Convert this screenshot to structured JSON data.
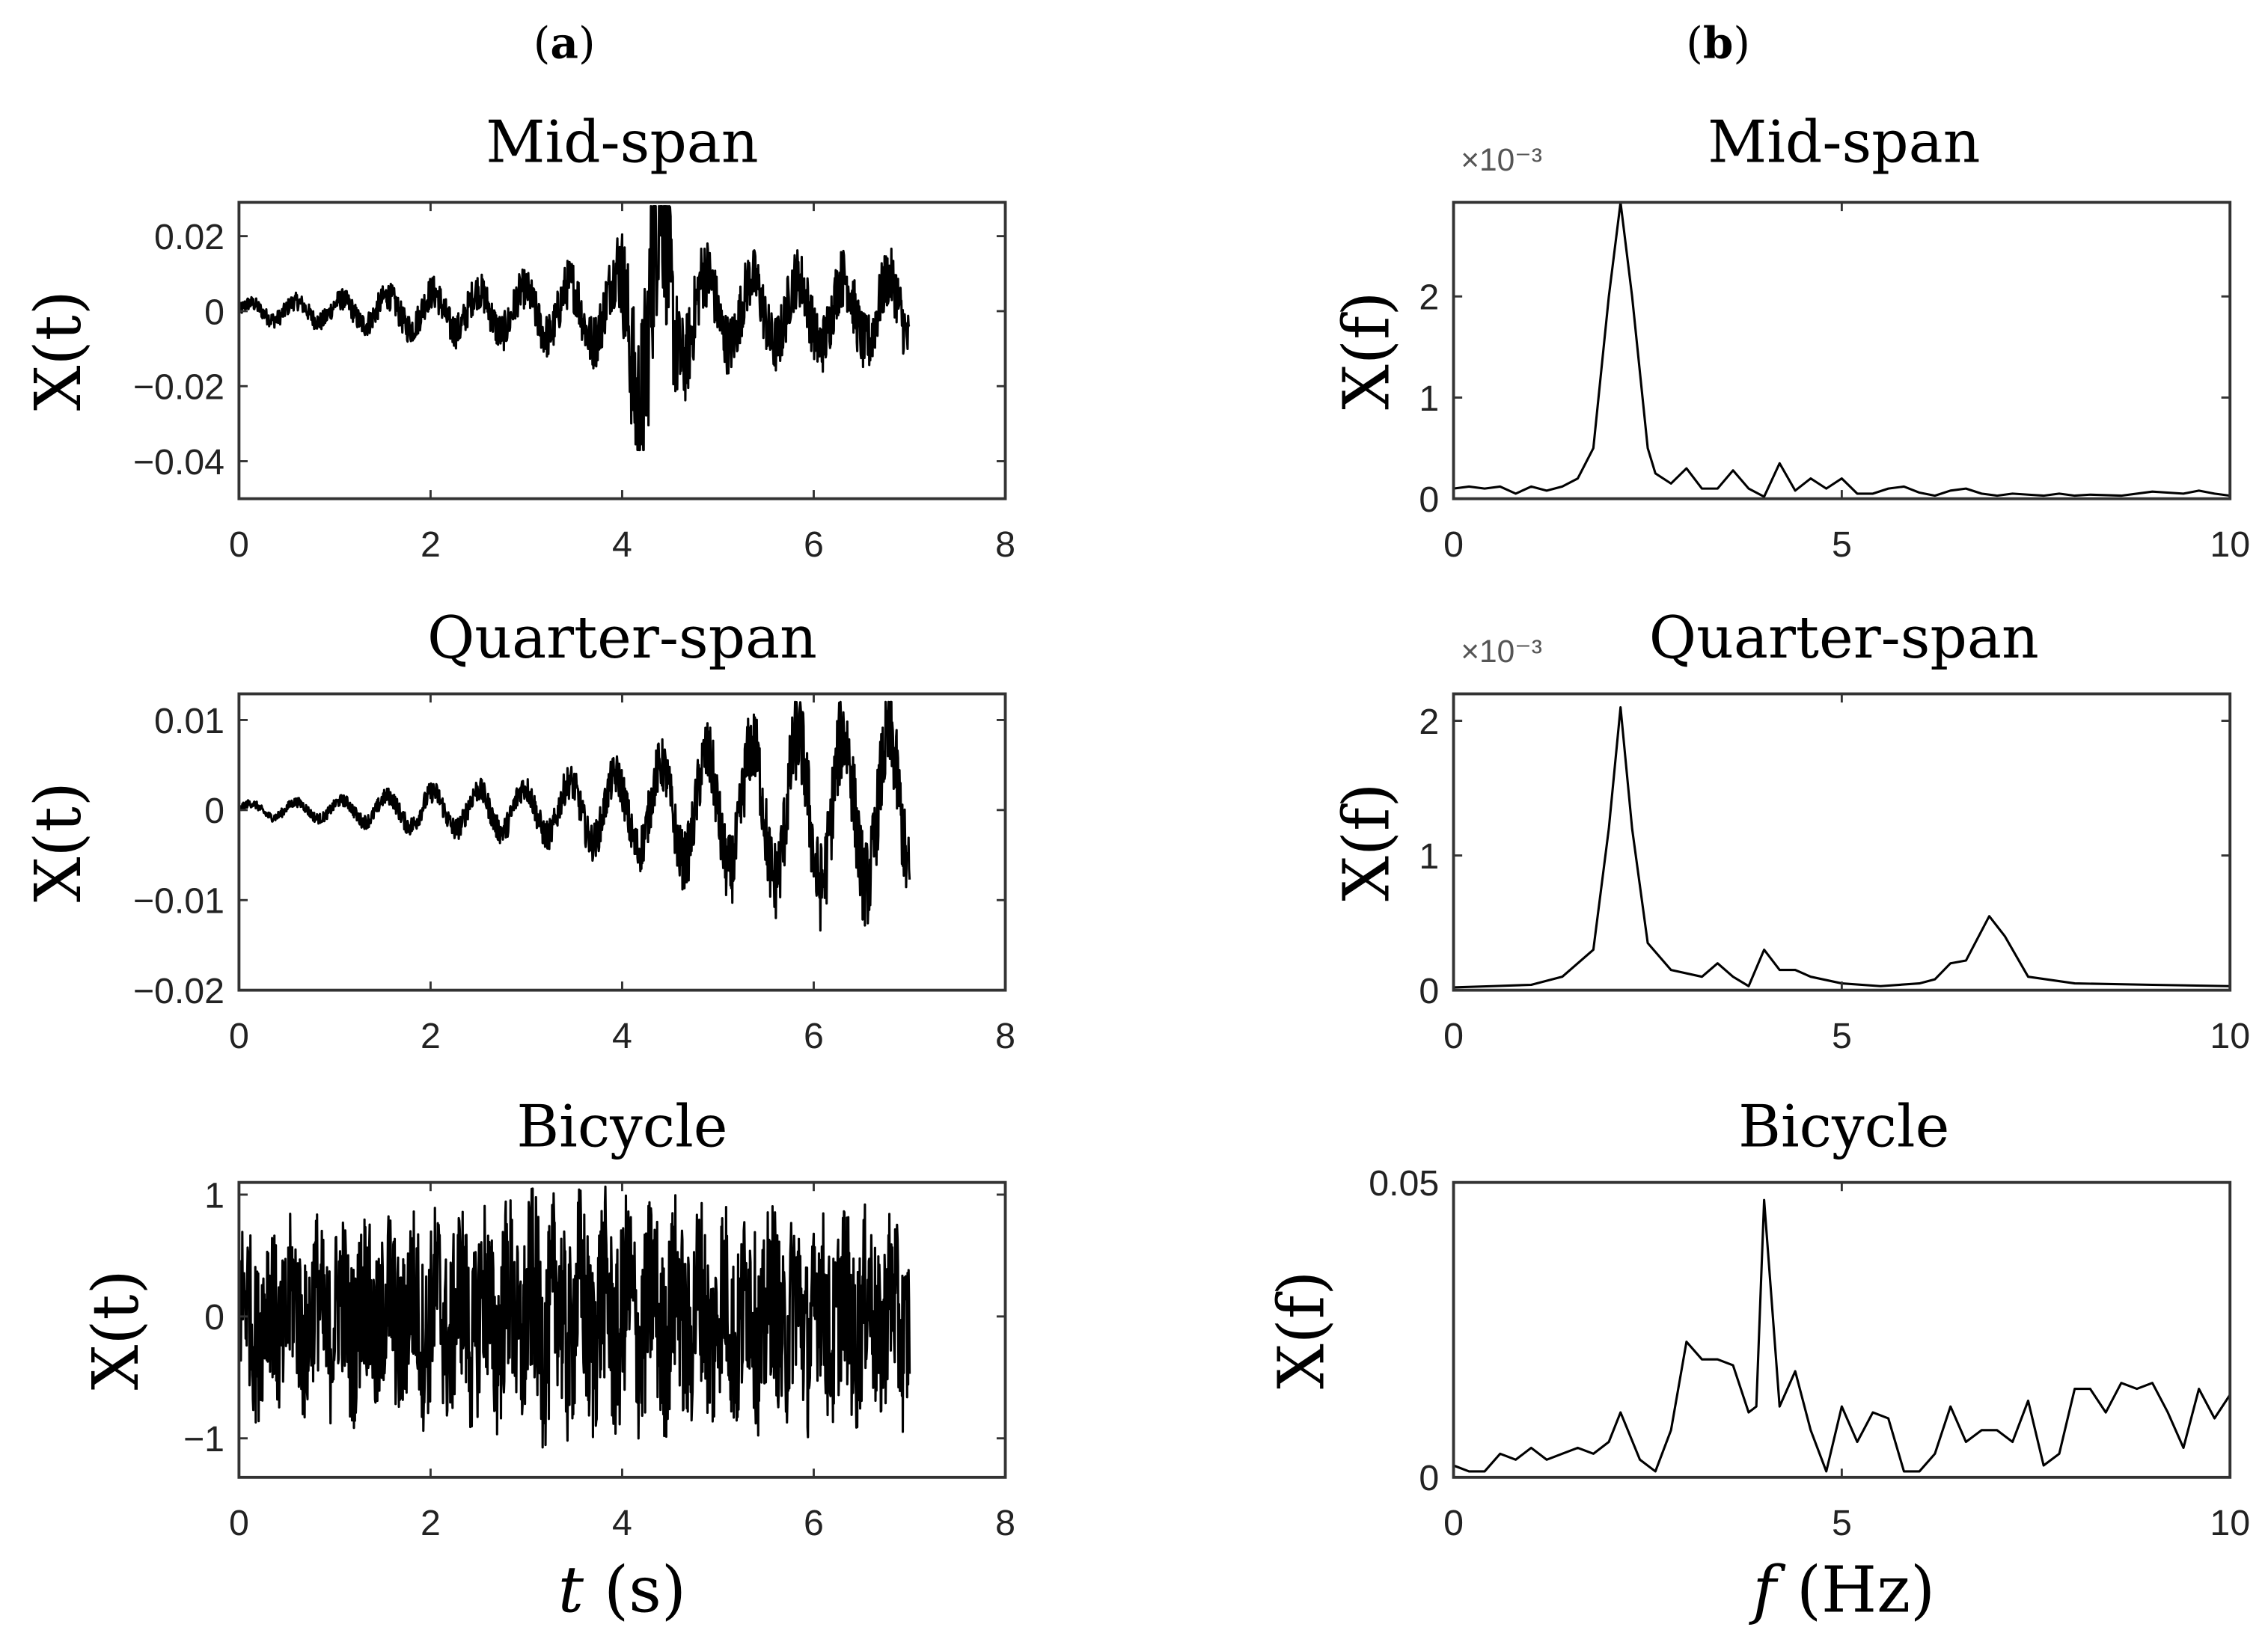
{
  "panel_labels": {
    "a": "a",
    "b": "b"
  },
  "axis_labels": {
    "time_x_var": "t",
    "time_x_unit": " (s)",
    "freq_x_var": "f",
    "freq_x_unit": " (Hz)",
    "time_y": "X(t)",
    "freq_y": "X(f)"
  },
  "chart_data": [
    {
      "id": "time-mid-span",
      "type": "line",
      "title": "Mid-span",
      "xlabel": "",
      "ylabel": "X(t)",
      "xlim": [
        0,
        8
      ],
      "ylim": [
        -0.05,
        0.029
      ],
      "xticks": [
        0,
        2,
        4,
        6,
        8
      ],
      "xtick_labels": [
        "0",
        "2",
        "4",
        "6",
        "8"
      ],
      "yticks": [
        0.02,
        0,
        -0.02,
        -0.04
      ],
      "ytick_labels": [
        "0.02",
        "0",
        "−0.02",
        "−0.04"
      ],
      "signal": {
        "duration_s": 7,
        "dominant_freq_hz": 2.1,
        "noise_ratio": 0.9,
        "envelope": [
          [
            0,
            0.002
          ],
          [
            1,
            0.003
          ],
          [
            2,
            0.005
          ],
          [
            3,
            0.006
          ],
          [
            3.9,
            0.009
          ],
          [
            4.2,
            0.028
          ],
          [
            4.4,
            0.034
          ],
          [
            4.6,
            0.014
          ],
          [
            5,
            0.009
          ],
          [
            6,
            0.009
          ],
          [
            7,
            0.009
          ]
        ],
        "max": 0.028,
        "min": -0.037
      }
    },
    {
      "id": "spectrum-mid-span",
      "type": "line",
      "title": "Mid-span",
      "xlabel": "",
      "ylabel": "X(f)",
      "y_multiplier": "×10⁻³",
      "xlim": [
        0,
        10
      ],
      "ylim": [
        0,
        2.93
      ],
      "xticks": [
        0,
        5,
        10
      ],
      "xtick_labels": [
        "0",
        "5",
        "10"
      ],
      "yticks": [
        2,
        1,
        0
      ],
      "ytick_labels": [
        "2",
        "1",
        "0"
      ],
      "x": [
        0,
        0.2,
        0.4,
        0.6,
        0.8,
        1.0,
        1.2,
        1.4,
        1.6,
        1.8,
        2.0,
        2.15,
        2.3,
        2.5,
        2.6,
        2.8,
        3.0,
        3.2,
        3.4,
        3.6,
        3.8,
        4.0,
        4.2,
        4.4,
        4.6,
        4.8,
        5.0,
        5.2,
        5.4,
        5.6,
        5.8,
        6.0,
        6.2,
        6.4,
        6.6,
        6.8,
        7.0,
        7.2,
        7.4,
        7.6,
        7.8,
        8.0,
        8.2,
        8.6,
        9.0,
        9.4,
        9.6,
        9.8,
        10
      ],
      "y": [
        0.1,
        0.12,
        0.1,
        0.12,
        0.05,
        0.12,
        0.08,
        0.12,
        0.2,
        0.5,
        2.0,
        2.93,
        2.0,
        0.5,
        0.25,
        0.15,
        0.3,
        0.1,
        0.1,
        0.28,
        0.1,
        0.02,
        0.35,
        0.08,
        0.2,
        0.1,
        0.2,
        0.05,
        0.05,
        0.1,
        0.12,
        0.06,
        0.03,
        0.08,
        0.1,
        0.05,
        0.03,
        0.05,
        0.04,
        0.03,
        0.05,
        0.03,
        0.04,
        0.03,
        0.07,
        0.05,
        0.08,
        0.05,
        0.03
      ]
    },
    {
      "id": "time-quarter-span",
      "type": "line",
      "title": "Quarter-span",
      "xlabel": "",
      "ylabel": "X(t)",
      "xlim": [
        0,
        8
      ],
      "ylim": [
        -0.02,
        0.0129
      ],
      "xticks": [
        0,
        2,
        4,
        6,
        8
      ],
      "xtick_labels": [
        "0",
        "2",
        "4",
        "6",
        "8"
      ],
      "yticks": [
        0.01,
        0,
        -0.01,
        -0.02
      ],
      "ytick_labels": [
        "0.01",
        "0",
        "−0.01",
        "−0.02"
      ],
      "signal": {
        "duration_s": 7,
        "dominant_freq_hz": 2.1,
        "noise_ratio": 0.6,
        "envelope": [
          [
            0,
            0.0007
          ],
          [
            1,
            0.001
          ],
          [
            2,
            0.002
          ],
          [
            3,
            0.0025
          ],
          [
            4,
            0.004
          ],
          [
            5,
            0.0065
          ],
          [
            6,
            0.0085
          ],
          [
            7,
            0.008
          ]
        ],
        "max": 0.012,
        "min": -0.0155
      }
    },
    {
      "id": "spectrum-quarter-span",
      "type": "line",
      "title": "Quarter-span",
      "xlabel": "",
      "ylabel": "X(f)",
      "y_multiplier": "×10⁻³",
      "xlim": [
        0,
        10
      ],
      "ylim": [
        0,
        2.2
      ],
      "xticks": [
        0,
        5,
        10
      ],
      "xtick_labels": [
        "0",
        "5",
        "10"
      ],
      "yticks": [
        2,
        1,
        0
      ],
      "ytick_labels": [
        "2",
        "1",
        "0"
      ],
      "x": [
        0,
        0.5,
        1.0,
        1.4,
        1.8,
        2.0,
        2.15,
        2.3,
        2.5,
        2.8,
        3.2,
        3.4,
        3.6,
        3.8,
        4.0,
        4.2,
        4.4,
        4.6,
        5.0,
        5.5,
        6.0,
        6.2,
        6.4,
        6.6,
        6.9,
        7.1,
        7.4,
        8.0,
        9.0,
        10
      ],
      "y": [
        0.02,
        0.03,
        0.04,
        0.1,
        0.3,
        1.2,
        2.1,
        1.2,
        0.35,
        0.15,
        0.1,
        0.2,
        0.1,
        0.03,
        0.3,
        0.15,
        0.15,
        0.1,
        0.05,
        0.03,
        0.05,
        0.08,
        0.2,
        0.22,
        0.55,
        0.4,
        0.1,
        0.05,
        0.04,
        0.03
      ]
    },
    {
      "id": "time-bicycle",
      "type": "line",
      "title": "Bicycle",
      "xlabel": "t (s)",
      "ylabel": "X(t)",
      "xlim": [
        0,
        8
      ],
      "ylim": [
        -1.32,
        1.1
      ],
      "xticks": [
        0,
        2,
        4,
        6,
        8
      ],
      "xtick_labels": [
        "0",
        "2",
        "4",
        "6",
        "8"
      ],
      "yticks": [
        1,
        0,
        -1
      ],
      "ytick_labels": [
        "1",
        "0",
        "−1"
      ],
      "signal": {
        "duration_s": 7,
        "dominant_freq_hz": 4.0,
        "noise_ratio": 3.0,
        "envelope": [
          [
            0,
            0.22
          ],
          [
            2,
            0.24
          ],
          [
            3.3,
            0.28
          ],
          [
            4.6,
            0.26
          ],
          [
            7,
            0.24
          ]
        ],
        "max": 1.1,
        "min": -1.32
      }
    },
    {
      "id": "spectrum-bicycle",
      "type": "line",
      "title": "Bicycle",
      "xlabel": "f (Hz)",
      "ylabel": "X(f)",
      "xlim": [
        0,
        10
      ],
      "ylim": [
        0,
        0.05
      ],
      "xticks": [
        0,
        5,
        10
      ],
      "xtick_labels": [
        "0",
        "5",
        "10"
      ],
      "yticks": [
        0.05,
        0
      ],
      "ytick_labels": [
        "0.05",
        "0"
      ],
      "x": [
        0,
        0.2,
        0.4,
        0.6,
        0.8,
        1.0,
        1.2,
        1.4,
        1.6,
        1.8,
        2.0,
        2.15,
        2.4,
        2.6,
        2.8,
        3.0,
        3.2,
        3.4,
        3.6,
        3.8,
        3.9,
        4.0,
        4.2,
        4.4,
        4.6,
        4.8,
        5.0,
        5.2,
        5.4,
        5.6,
        5.8,
        6.0,
        6.2,
        6.4,
        6.6,
        6.8,
        7.0,
        7.2,
        7.4,
        7.6,
        7.8,
        8.0,
        8.2,
        8.4,
        8.6,
        8.8,
        9.0,
        9.2,
        9.4,
        9.6,
        9.8,
        10
      ],
      "y": [
        0.002,
        0.001,
        0.001,
        0.004,
        0.003,
        0.005,
        0.003,
        0.004,
        0.005,
        0.004,
        0.006,
        0.011,
        0.003,
        0.001,
        0.008,
        0.023,
        0.02,
        0.02,
        0.019,
        0.011,
        0.012,
        0.047,
        0.012,
        0.018,
        0.008,
        0.001,
        0.012,
        0.006,
        0.011,
        0.01,
        0.001,
        0.001,
        0.004,
        0.012,
        0.006,
        0.008,
        0.008,
        0.006,
        0.013,
        0.002,
        0.004,
        0.015,
        0.015,
        0.011,
        0.016,
        0.015,
        0.016,
        0.011,
        0.005,
        0.015,
        0.01,
        0.014
      ]
    }
  ]
}
